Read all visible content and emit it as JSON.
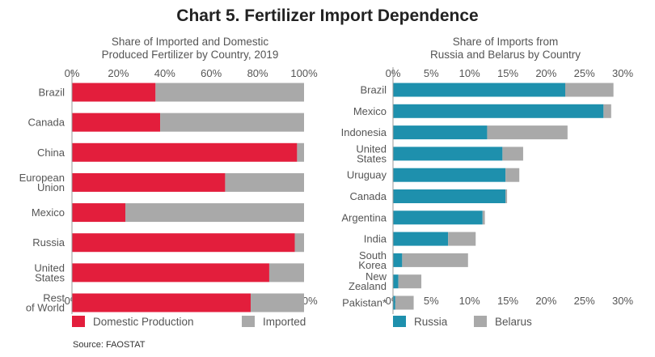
{
  "title": "Chart 5. Fertilizer Import Dependence",
  "source": "Source: FAOSTAT",
  "chart_data": [
    {
      "type": "bar",
      "orientation": "horizontal",
      "stacked": true,
      "title_lines": [
        "Share of Imported and Domestic",
        "Produced Fertilizer by Country, 2019"
      ],
      "categories": [
        [
          "Brazil"
        ],
        [
          "Canada"
        ],
        [
          "China"
        ],
        [
          "European",
          "Union"
        ],
        [
          "Mexico"
        ],
        [
          "Russia"
        ],
        [
          "United",
          "States"
        ],
        [
          "Rest",
          "of World"
        ]
      ],
      "series": [
        {
          "name": "Domestic Production",
          "color": "#e31e3c",
          "values": [
            36,
            38,
            97,
            66,
            23,
            96,
            85,
            77
          ]
        },
        {
          "name": "Imported",
          "color": "#a9a9a9",
          "values": [
            64,
            62,
            3,
            34,
            77,
            4,
            15,
            23
          ]
        }
      ],
      "xlim": [
        0,
        100
      ],
      "ticks": [
        "0%",
        "20%",
        "40%",
        "60%",
        "80%",
        "100%"
      ],
      "legend_position": "bottom"
    },
    {
      "type": "bar",
      "orientation": "horizontal",
      "stacked": true,
      "title_lines": [
        "Share of Imports from",
        "Russia and Belarus by Country"
      ],
      "categories": [
        [
          "Brazil"
        ],
        [
          "Mexico"
        ],
        [
          "Indonesia"
        ],
        [
          "United",
          "States"
        ],
        [
          "Uruguay"
        ],
        [
          "Canada"
        ],
        [
          "Argentina"
        ],
        [
          "India"
        ],
        [
          "South",
          "Korea"
        ],
        [
          "New",
          "Zealand"
        ],
        [
          "Pakistan*"
        ]
      ],
      "series": [
        {
          "name": "Russia",
          "color": "#1e90ad",
          "values": [
            22.5,
            27.5,
            12.3,
            14.3,
            14.7,
            14.7,
            11.7,
            7.2,
            1.2,
            0.7,
            0.3
          ]
        },
        {
          "name": "Belarus",
          "color": "#a9a9a9",
          "values": [
            6.3,
            1.0,
            10.5,
            2.7,
            1.8,
            0.2,
            0.3,
            3.6,
            8.6,
            3.0,
            2.4
          ]
        }
      ],
      "xlim": [
        0,
        30
      ],
      "ticks": [
        "0%",
        "5%",
        "10%",
        "15%",
        "20%",
        "25%",
        "30%"
      ],
      "legend_position": "bottom"
    }
  ]
}
